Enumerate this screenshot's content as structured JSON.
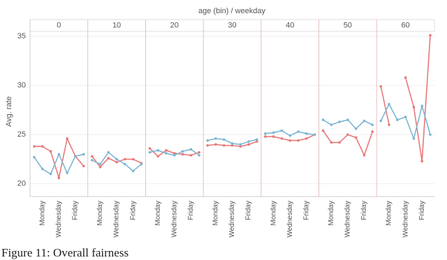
{
  "chart_data": {
    "type": "line",
    "title": "age (bin) / weekday",
    "y_label": "Avg. rate",
    "caption": "Figure 11: Overall fairness",
    "facets": [
      "0",
      "10",
      "20",
      "30",
      "40",
      "50",
      "60"
    ],
    "categories": [
      null,
      "Monday",
      null,
      "Wednesday",
      null,
      "Friday",
      null
    ],
    "ylim": [
      18.7,
      35.5
    ],
    "yticks": [
      20,
      25,
      30,
      35
    ],
    "grid": true,
    "series": [
      {
        "color": "#e8797b",
        "values": [
          [
            23.8,
            23.8,
            23.3,
            20.6,
            24.6,
            22.8,
            21.8
          ],
          [
            22.8,
            21.7,
            22.6,
            22.2,
            22.5,
            22.5,
            22.1
          ],
          [
            23.6,
            22.8,
            23.4,
            23.1,
            23.0,
            22.9,
            23.2
          ],
          [
            23.9,
            24.0,
            23.9,
            23.9,
            23.8,
            24.0,
            24.3
          ],
          [
            24.8,
            24.8,
            24.6,
            24.4,
            24.4,
            24.6,
            25.0
          ],
          [
            25.4,
            24.2,
            24.2,
            25.0,
            24.7,
            22.9,
            25.3
          ],
          [
            29.9,
            26.0,
            null,
            30.8,
            27.8,
            22.3,
            35.1
          ]
        ]
      },
      {
        "color": "#7db6d2",
        "values": [
          [
            22.7,
            21.5,
            21.0,
            23.0,
            21.1,
            22.8,
            23.0
          ],
          [
            22.4,
            22.0,
            23.2,
            22.5,
            22.0,
            21.3,
            22.0
          ],
          [
            23.2,
            23.4,
            23.1,
            22.9,
            23.3,
            23.5,
            22.9
          ],
          [
            24.4,
            24.6,
            24.5,
            24.1,
            24.0,
            24.3,
            24.5
          ],
          [
            25.1,
            25.2,
            25.4,
            24.9,
            25.3,
            25.1,
            25.0
          ],
          [
            26.5,
            26.0,
            26.3,
            26.5,
            25.6,
            26.4,
            26.0
          ],
          [
            26.4,
            28.1,
            26.5,
            26.8,
            24.6,
            27.9,
            25.0
          ]
        ]
      }
    ]
  }
}
